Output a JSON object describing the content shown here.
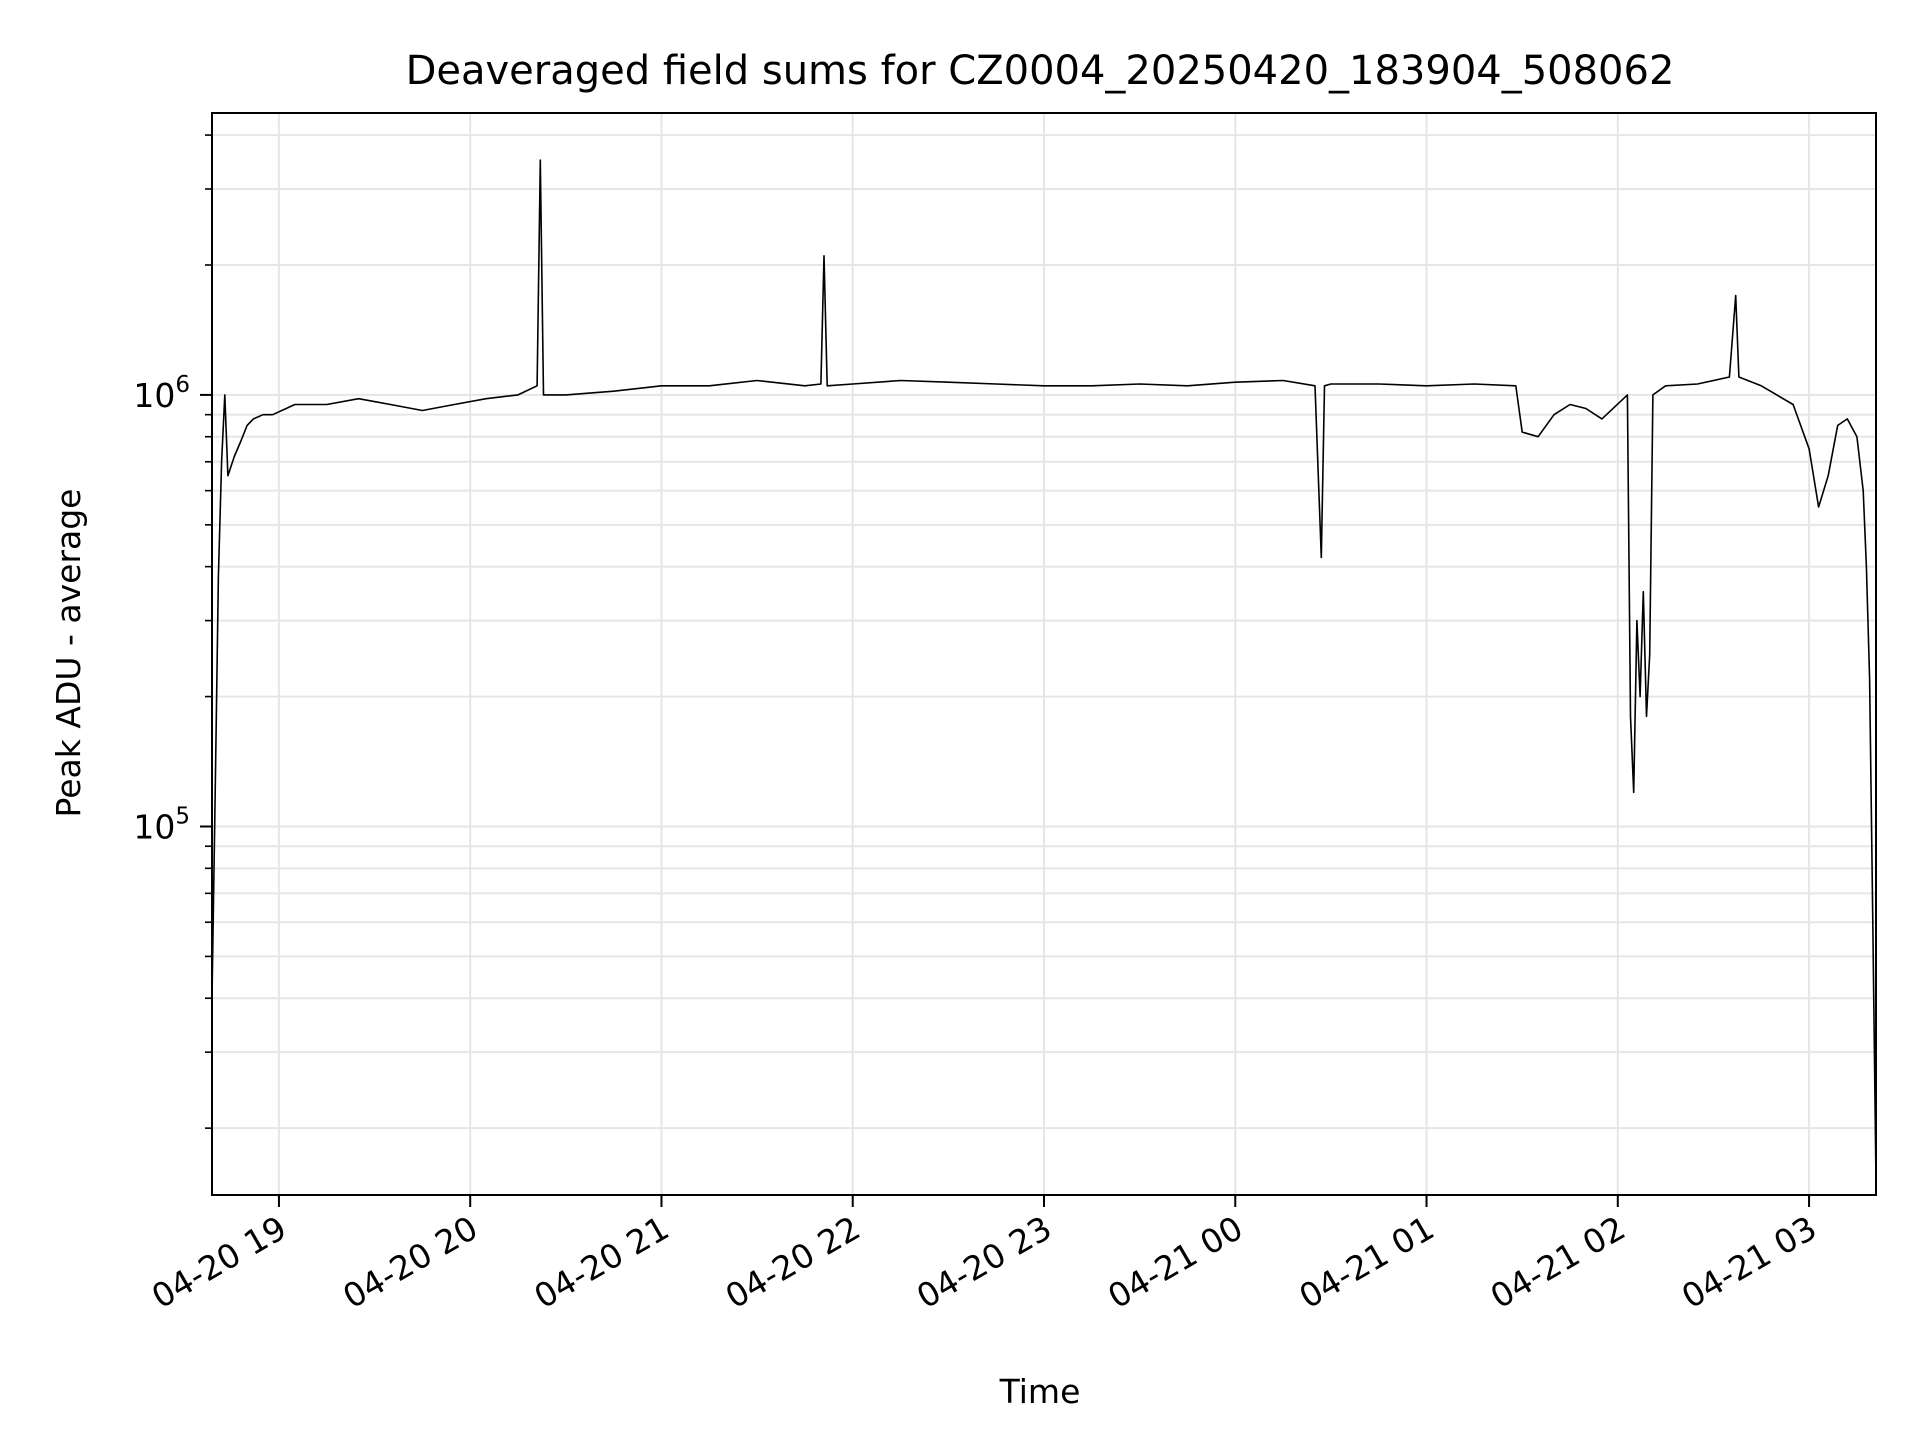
{
  "chart_data": {
    "type": "line",
    "title": "Deaveraged field sums for CZ0004_20250420_183904_508062",
    "xlabel": "Time",
    "ylabel": "Peak ADU - average",
    "x_axis": {
      "kind": "time",
      "range": [
        "2025-04-20T18:39",
        "2025-04-21T03:21"
      ],
      "ticks": [
        {
          "t": "2025-04-20T19:00",
          "label": "04-20 19"
        },
        {
          "t": "2025-04-20T20:00",
          "label": "04-20 20"
        },
        {
          "t": "2025-04-20T21:00",
          "label": "04-20 21"
        },
        {
          "t": "2025-04-20T22:00",
          "label": "04-20 22"
        },
        {
          "t": "2025-04-20T23:00",
          "label": "04-20 23"
        },
        {
          "t": "2025-04-21T00:00",
          "label": "04-21 00"
        },
        {
          "t": "2025-04-21T01:00",
          "label": "04-21 01"
        },
        {
          "t": "2025-04-21T02:00",
          "label": "04-21 02"
        },
        {
          "t": "2025-04-21T03:00",
          "label": "04-21 03"
        }
      ]
    },
    "y_axis": {
      "scale": "log",
      "range": [
        14000,
        4500000
      ],
      "major_ticks": [
        {
          "value": 100000,
          "base": "10",
          "exponent": "5"
        },
        {
          "value": 1000000,
          "base": "10",
          "exponent": "6"
        }
      ],
      "minor_ticks": [
        20000,
        30000,
        40000,
        50000,
        60000,
        70000,
        80000,
        90000,
        200000,
        300000,
        400000,
        500000,
        600000,
        700000,
        800000,
        900000,
        2000000,
        3000000,
        4000000
      ]
    },
    "grid": true,
    "grid_color": "#e6e6e6",
    "line_color": "#000000",
    "series": [
      {
        "x": [
          "2025-04-20T18:39",
          "2025-04-20T18:40",
          "2025-04-20T18:41",
          "2025-04-20T18:42",
          "2025-04-20T18:43",
          "2025-04-20T18:44",
          "2025-04-20T18:46",
          "2025-04-20T18:48",
          "2025-04-20T18:50",
          "2025-04-20T18:52",
          "2025-04-20T18:55",
          "2025-04-20T18:58",
          "2025-04-20T19:05",
          "2025-04-20T19:15",
          "2025-04-20T19:25",
          "2025-04-20T19:35",
          "2025-04-20T19:45",
          "2025-04-20T19:55",
          "2025-04-20T20:05",
          "2025-04-20T20:15",
          "2025-04-20T20:21",
          "2025-04-20T20:22",
          "2025-04-20T20:23",
          "2025-04-20T20:30",
          "2025-04-20T20:45",
          "2025-04-20T21:00",
          "2025-04-20T21:15",
          "2025-04-20T21:30",
          "2025-04-20T21:45",
          "2025-04-20T21:50",
          "2025-04-20T21:51",
          "2025-04-20T21:52",
          "2025-04-20T22:00",
          "2025-04-20T22:15",
          "2025-04-20T22:30",
          "2025-04-20T22:45",
          "2025-04-20T23:00",
          "2025-04-20T23:15",
          "2025-04-20T23:30",
          "2025-04-20T23:45",
          "2025-04-21T00:00",
          "2025-04-21T00:15",
          "2025-04-21T00:25",
          "2025-04-21T00:27",
          "2025-04-21T00:28",
          "2025-04-21T00:30",
          "2025-04-21T00:45",
          "2025-04-21T01:00",
          "2025-04-21T01:15",
          "2025-04-21T01:28",
          "2025-04-21T01:30",
          "2025-04-21T01:35",
          "2025-04-21T01:40",
          "2025-04-21T01:45",
          "2025-04-21T01:50",
          "2025-04-21T01:55",
          "2025-04-21T02:03",
          "2025-04-21T02:04",
          "2025-04-21T02:05",
          "2025-04-21T02:06",
          "2025-04-21T02:07",
          "2025-04-21T02:08",
          "2025-04-21T02:09",
          "2025-04-21T02:10",
          "2025-04-21T02:11",
          "2025-04-21T02:15",
          "2025-04-21T02:25",
          "2025-04-21T02:35",
          "2025-04-21T02:37",
          "2025-04-21T02:38",
          "2025-04-21T02:45",
          "2025-04-21T02:55",
          "2025-04-21T03:00",
          "2025-04-21T03:03",
          "2025-04-21T03:06",
          "2025-04-21T03:09",
          "2025-04-21T03:12",
          "2025-04-21T03:15",
          "2025-04-21T03:17",
          "2025-04-21T03:18",
          "2025-04-21T03:19",
          "2025-04-21T03:20",
          "2025-04-21T03:21"
        ],
        "y": [
          40000,
          120000,
          380000,
          700000,
          1000000,
          650000,
          720000,
          780000,
          850000,
          880000,
          900000,
          900000,
          950000,
          950000,
          980000,
          950000,
          920000,
          950000,
          980000,
          1000000,
          1050000,
          3500000,
          1000000,
          1000000,
          1020000,
          1050000,
          1050000,
          1080000,
          1050000,
          1060000,
          2100000,
          1050000,
          1060000,
          1080000,
          1070000,
          1060000,
          1050000,
          1050000,
          1060000,
          1050000,
          1070000,
          1080000,
          1050000,
          420000,
          1050000,
          1060000,
          1060000,
          1050000,
          1060000,
          1050000,
          820000,
          800000,
          900000,
          950000,
          930000,
          880000,
          1000000,
          180000,
          120000,
          300000,
          200000,
          350000,
          180000,
          250000,
          1000000,
          1050000,
          1060000,
          1100000,
          1700000,
          1100000,
          1050000,
          950000,
          750000,
          550000,
          650000,
          850000,
          880000,
          800000,
          600000,
          400000,
          220000,
          60000,
          15000
        ]
      }
    ]
  }
}
